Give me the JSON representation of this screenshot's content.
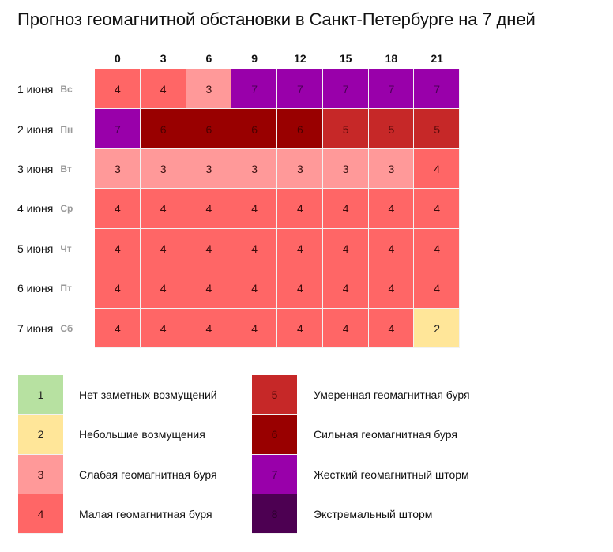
{
  "title": "Прогноз геомагнитной обстановки в Санкт-Петербурге на 7 дней",
  "hours": [
    "0",
    "3",
    "6",
    "9",
    "12",
    "15",
    "18",
    "21"
  ],
  "rows": [
    {
      "date": "1 июня",
      "dow": "Вс",
      "values": [
        4,
        4,
        3,
        7,
        7,
        7,
        7,
        7
      ]
    },
    {
      "date": "2 июня",
      "dow": "Пн",
      "values": [
        7,
        6,
        6,
        6,
        6,
        5,
        5,
        5
      ]
    },
    {
      "date": "3 июня",
      "dow": "Вт",
      "values": [
        3,
        3,
        3,
        3,
        3,
        3,
        3,
        4
      ]
    },
    {
      "date": "4 июня",
      "dow": "Ср",
      "values": [
        4,
        4,
        4,
        4,
        4,
        4,
        4,
        4
      ]
    },
    {
      "date": "5 июня",
      "dow": "Чт",
      "values": [
        4,
        4,
        4,
        4,
        4,
        4,
        4,
        4
      ]
    },
    {
      "date": "6 июня",
      "dow": "Пт",
      "values": [
        4,
        4,
        4,
        4,
        4,
        4,
        4,
        4
      ]
    },
    {
      "date": "7 июня",
      "dow": "Сб",
      "values": [
        4,
        4,
        4,
        4,
        4,
        4,
        4,
        2
      ]
    }
  ],
  "legend": [
    {
      "level": "1",
      "label": "Нет заметных возмущений",
      "color": "#b7e1a1"
    },
    {
      "level": "2",
      "label": "Небольшие возмущения",
      "color": "#ffe699"
    },
    {
      "level": "3",
      "label": "Слабая геомагнитная буря",
      "color": "#ff9999"
    },
    {
      "level": "4",
      "label": "Малая геомагнитная буря",
      "color": "#ff6666"
    },
    {
      "level": "5",
      "label": "Умеренная геомагнитная буря",
      "color": "#c62828"
    },
    {
      "level": "6",
      "label": "Сильная геомагнитная буря",
      "color": "#990000"
    },
    {
      "level": "7",
      "label": "Жесткий геомагнитный шторм",
      "color": "#9900aa"
    },
    {
      "level": "8",
      "label": "Экстремальный шторм",
      "color": "#4d0052"
    }
  ],
  "chart_data": {
    "type": "heatmap",
    "title": "Прогноз геомагнитной обстановки в Санкт-Петербурге на 7 дней",
    "xlabel": "",
    "ylabel": "",
    "x": [
      "0",
      "3",
      "6",
      "9",
      "12",
      "15",
      "18",
      "21"
    ],
    "y": [
      "1 июня Вс",
      "2 июня Пн",
      "3 июня Вт",
      "4 июня Ср",
      "5 июня Чт",
      "6 июня Пт",
      "7 июня Сб"
    ],
    "values": [
      [
        4,
        4,
        3,
        7,
        7,
        7,
        7,
        7
      ],
      [
        7,
        6,
        6,
        6,
        6,
        5,
        5,
        5
      ],
      [
        3,
        3,
        3,
        3,
        3,
        3,
        3,
        4
      ],
      [
        4,
        4,
        4,
        4,
        4,
        4,
        4,
        4
      ],
      [
        4,
        4,
        4,
        4,
        4,
        4,
        4,
        4
      ],
      [
        4,
        4,
        4,
        4,
        4,
        4,
        4,
        4
      ],
      [
        4,
        4,
        4,
        4,
        4,
        4,
        4,
        2
      ]
    ],
    "scale": {
      "1": "Нет заметных возмущений",
      "2": "Небольшие возмущения",
      "3": "Слабая геомагнитная буря",
      "4": "Малая геомагнитная буря",
      "5": "Умеренная геомагнитная буря",
      "6": "Сильная геомагнитная буря",
      "7": "Жесткий геомагнитный шторм",
      "8": "Экстремальный шторм"
    },
    "legend_position": "bottom"
  }
}
